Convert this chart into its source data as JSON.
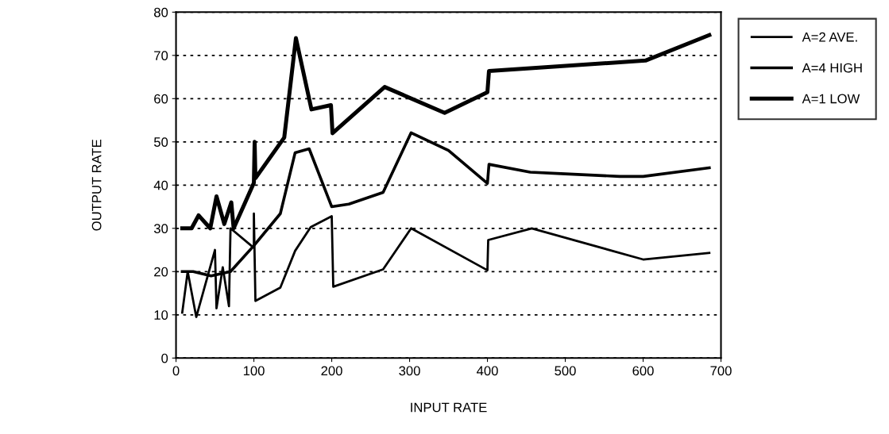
{
  "chart_data": {
    "type": "line",
    "xlabel": "INPUT RATE",
    "ylabel": "OUTPUT RATE",
    "xlim": [
      0,
      700
    ],
    "xticks": [
      0,
      100,
      200,
      300,
      400,
      500,
      600,
      700
    ],
    "ylim": [
      0,
      80
    ],
    "yticks": [
      0,
      10,
      20,
      30,
      40,
      50,
      60,
      70,
      80
    ],
    "grid": "y",
    "legend": "top right",
    "marker": "none",
    "line_style": "solid",
    "series": [
      {
        "name": "A=2 AVE.",
        "color": "#000000",
        "x": [
          8,
          15,
          26,
          50,
          52,
          60,
          68,
          70,
          100,
          100,
          102,
          134,
          153,
          173,
          200,
          202,
          266,
          302,
          400,
          401,
          457,
          600,
          685
        ],
        "values": [
          10.5,
          20,
          9.5,
          25,
          11.5,
          21,
          12,
          30,
          25.5,
          33.4,
          13.2,
          16.3,
          24.8,
          30.3,
          32.8,
          16.5,
          20.5,
          30,
          20.3,
          27.3,
          30,
          22.8,
          24.3
        ]
      },
      {
        "name": "A=4 HIGH",
        "color": "#000000",
        "x": [
          8,
          22,
          45,
          70,
          100,
          134,
          153,
          171,
          200,
          222,
          266,
          302,
          350,
          400,
          402,
          455,
          500,
          570,
          600,
          685
        ],
        "values": [
          20,
          20,
          19,
          20,
          26,
          33.4,
          47.5,
          48.4,
          35,
          35.6,
          38.3,
          52.1,
          48,
          40.4,
          44.8,
          43,
          42.6,
          42,
          42,
          44
        ]
      },
      {
        "name": "A=1 LOW",
        "color": "#000000",
        "x": [
          8,
          20,
          29,
          44,
          52,
          62,
          71,
          74,
          100,
          101,
          102,
          139,
          154,
          174,
          199,
          201,
          268,
          345,
          400,
          402,
          603,
          685
        ],
        "values": [
          30,
          30,
          33,
          30,
          37.4,
          31,
          36,
          30,
          40.5,
          50,
          41.6,
          51,
          74,
          57.5,
          58.5,
          52,
          62.7,
          56.7,
          61.5,
          66.4,
          68.8,
          74.7
        ]
      }
    ]
  }
}
